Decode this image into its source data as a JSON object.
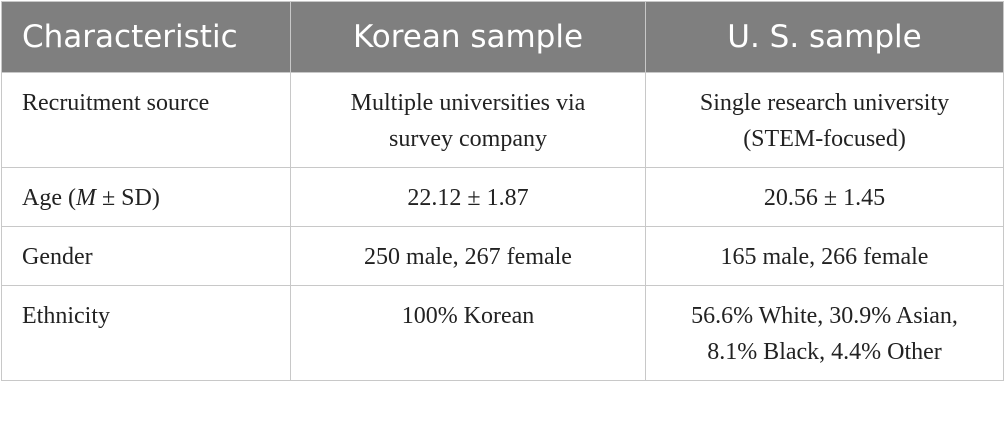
{
  "table": {
    "header": [
      "Characteristic",
      "Korean sample",
      "U. S. sample"
    ],
    "rows": [
      {
        "label": "Recruitment source",
        "cells": [
          [
            "Multiple universities via",
            "survey company"
          ],
          [
            "Single research university",
            "(STEM-focused)"
          ]
        ]
      },
      {
        "label_parts": [
          "Age (",
          "M",
          " ± SD)"
        ],
        "cells": [
          [
            "22.12 ± 1.87"
          ],
          [
            "20.56 ± 1.45"
          ]
        ]
      },
      {
        "label": "Gender",
        "cells": [
          [
            "250 male, 267 female"
          ],
          [
            "165 male, 266 female"
          ]
        ]
      },
      {
        "label": "Ethnicity",
        "cells": [
          [
            "100% Korean"
          ],
          [
            "56.6% White, 30.9% Asian,",
            "8.1% Black, 4.4% Other"
          ]
        ]
      }
    ]
  }
}
